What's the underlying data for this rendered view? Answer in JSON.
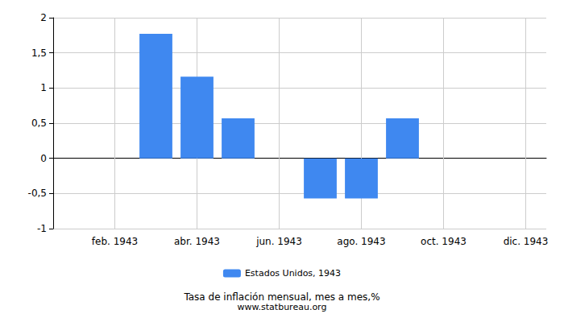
{
  "chart_data": {
    "type": "bar",
    "title": "Tasa de inflación mensual, mes a mes,%",
    "subtitle": "www.statbureau.org",
    "categories": [
      null,
      "feb. 1943",
      null,
      "abr. 1943",
      null,
      "jun. 1943",
      null,
      "ago. 1943",
      null,
      "oct. 1943",
      null,
      "dic. 1943"
    ],
    "series": [
      {
        "name": "Estados Unidos, 1943",
        "color": "#3f88f0",
        "values": [
          0,
          0,
          1.77,
          1.16,
          0.57,
          0,
          -0.57,
          -0.57,
          0.57,
          0,
          0,
          0
        ]
      }
    ],
    "ylim": [
      -1,
      2
    ],
    "yticks": [
      -1,
      {
        "value": -0.5,
        "label": "-0,5"
      },
      0,
      {
        "value": 0.5,
        "label": "0,5"
      },
      1,
      {
        "value": 1.5,
        "label": "1,5"
      },
      2
    ],
    "grid": true,
    "legend": "bottom"
  }
}
